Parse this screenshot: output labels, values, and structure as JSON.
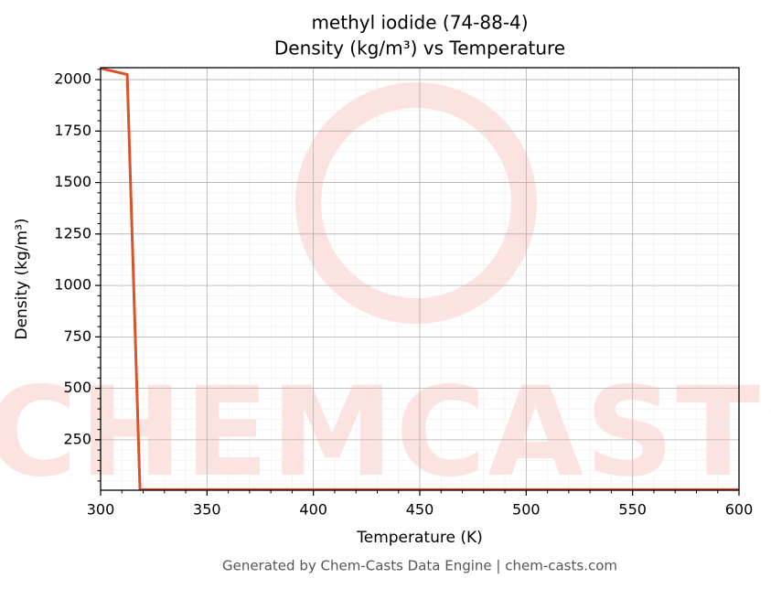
{
  "chart_data": {
    "type": "line",
    "title": "methyl iodide (74-88-4)",
    "subtitle": "Density (kg/m³) vs Temperature",
    "x_label": "Temperature (K)",
    "y_label": "Density (kg/m³)",
    "footer": "Generated by Chem-Casts Data Engine | chem-casts.com",
    "watermark": "CHEMCASTS",
    "x": [
      300,
      312.5,
      318.5,
      600
    ],
    "series": [
      {
        "name": "Density",
        "color": "#d9532a",
        "values": [
          2055,
          2025,
          8,
          8
        ]
      }
    ],
    "xlim": [
      300,
      600
    ],
    "xticks": [
      300,
      350,
      400,
      450,
      500,
      550,
      600
    ],
    "ylim": [
      5,
      2058
    ],
    "yticks": [
      250,
      500,
      750,
      1000,
      1250,
      1500,
      1750,
      2000
    ],
    "grid": true
  }
}
